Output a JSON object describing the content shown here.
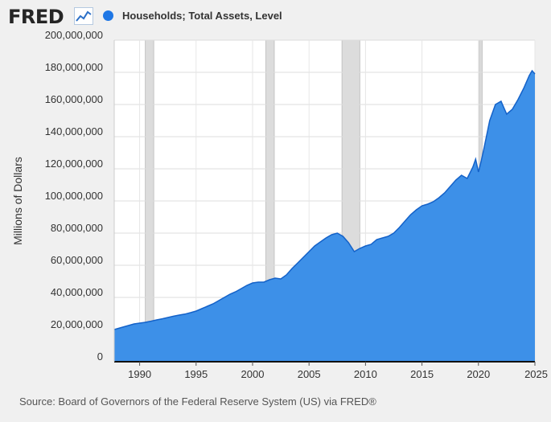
{
  "header": {
    "logo_text": "FRED",
    "logo_icon": "line-chart-icon",
    "legend_label": "Households; Total Assets, Level",
    "legend_color": "#1f77e5"
  },
  "source": "Source: Board of Governors of the Federal Reserve System (US) via FRED®",
  "chart_data": {
    "type": "area",
    "title": "",
    "ylabel": "Millions of Dollars",
    "xlabel": "",
    "xlim": [
      1987.75,
      2025.0
    ],
    "ylim": [
      0,
      200000000
    ],
    "grid": true,
    "legend": "top-left",
    "fill_color": "#3d90e8",
    "line_color": "#1462c9",
    "yticks": [
      {
        "value": 0,
        "label": "0"
      },
      {
        "value": 20000000,
        "label": "20,000,000"
      },
      {
        "value": 40000000,
        "label": "40,000,000"
      },
      {
        "value": 60000000,
        "label": "60,000,000"
      },
      {
        "value": 80000000,
        "label": "80,000,000"
      },
      {
        "value": 100000000,
        "label": "100,000,000"
      },
      {
        "value": 120000000,
        "label": "120,000,000"
      },
      {
        "value": 140000000,
        "label": "140,000,000"
      },
      {
        "value": 160000000,
        "label": "160,000,000"
      },
      {
        "value": 180000000,
        "label": "180,000,000"
      },
      {
        "value": 200000000,
        "label": "200,000,000"
      }
    ],
    "xticks": [
      {
        "value": 1990,
        "label": "1990"
      },
      {
        "value": 1995,
        "label": "1995"
      },
      {
        "value": 2000,
        "label": "2000"
      },
      {
        "value": 2005,
        "label": "2005"
      },
      {
        "value": 2010,
        "label": "2010"
      },
      {
        "value": 2015,
        "label": "2015"
      },
      {
        "value": 2020,
        "label": "2020"
      },
      {
        "value": 2025,
        "label": "2025"
      }
    ],
    "recessions": [
      {
        "start": 1990.5,
        "end": 1991.25
      },
      {
        "start": 2001.17,
        "end": 2001.92
      },
      {
        "start": 2007.92,
        "end": 2009.5
      },
      {
        "start": 2020.08,
        "end": 2020.33
      }
    ],
    "series": [
      {
        "x": [
          1987.75,
          1988,
          1988.5,
          1989,
          1989.5,
          1990,
          1990.5,
          1991,
          1991.5,
          1992,
          1992.5,
          1993,
          1993.5,
          1994,
          1994.5,
          1995,
          1995.5,
          1996,
          1996.5,
          1997,
          1997.5,
          1998,
          1998.5,
          1999,
          1999.5,
          2000,
          2000.5,
          2001,
          2001.5,
          2002,
          2002.5,
          2003,
          2003.5,
          2004,
          2004.5,
          2005,
          2005.5,
          2006,
          2006.5,
          2007,
          2007.5,
          2008,
          2008.5,
          2009,
          2009.5,
          2010,
          2010.5,
          2011,
          2011.5,
          2012,
          2012.5,
          2013,
          2013.5,
          2014,
          2014.5,
          2015,
          2015.5,
          2016,
          2016.5,
          2017,
          2017.5,
          2018,
          2018.5,
          2019,
          2019.5,
          2019.75,
          2020,
          2020.25,
          2020.5,
          2021,
          2021.5,
          2022,
          2022.5,
          2023,
          2023.5,
          2024,
          2024.5,
          2024.75,
          2025.0
        ],
        "values": [
          20000000,
          20500000,
          21500000,
          22500000,
          23500000,
          24000000,
          24500000,
          25200000,
          26000000,
          26700000,
          27500000,
          28300000,
          29000000,
          29600000,
          30500000,
          31500000,
          33000000,
          34500000,
          36000000,
          38000000,
          40000000,
          42000000,
          43500000,
          45500000,
          47500000,
          49000000,
          49500000,
          49500000,
          51000000,
          52000000,
          51500000,
          54000000,
          58000000,
          61500000,
          65000000,
          68500000,
          72000000,
          74500000,
          77000000,
          79000000,
          80000000,
          78000000,
          74000000,
          68500000,
          70500000,
          72000000,
          73000000,
          76000000,
          77000000,
          78000000,
          80000000,
          83500000,
          87500000,
          91500000,
          94500000,
          97000000,
          98000000,
          99500000,
          102000000,
          105000000,
          109000000,
          113000000,
          116000000,
          114000000,
          121000000,
          126000000,
          118000000,
          125000000,
          133000000,
          150000000,
          160000000,
          162000000,
          154000000,
          157000000,
          163000000,
          170000000,
          178000000,
          181000000,
          179000000
        ]
      }
    ]
  }
}
